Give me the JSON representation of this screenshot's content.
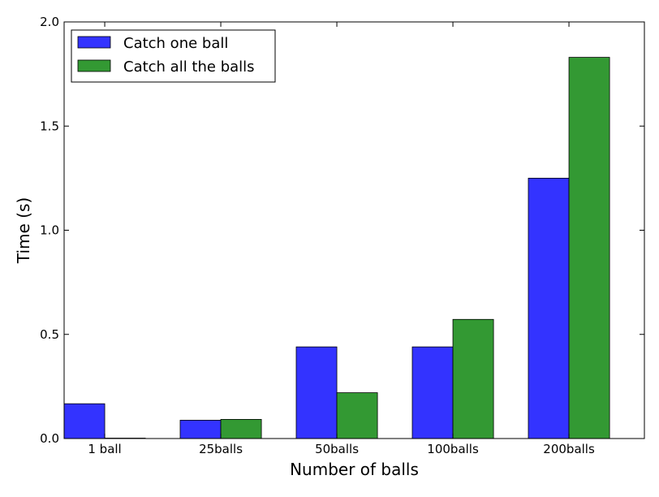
{
  "chart_data": {
    "type": "bar",
    "title": "",
    "xlabel": "Number of balls",
    "ylabel": "Time (s)",
    "ylim": [
      0,
      2.0
    ],
    "yticks": [
      "0.0",
      "0.5",
      "1.0",
      "1.5",
      "2.0"
    ],
    "categories": [
      "1 ball",
      "25balls",
      "50balls",
      "100balls",
      "200balls"
    ],
    "series": [
      {
        "name": "Catch one ball",
        "color": "#3333ff",
        "values": [
          0.167,
          0.088,
          0.44,
          0.44,
          1.25
        ]
      },
      {
        "name": "Catch all the balls",
        "color": "#339933",
        "values": [
          0.002,
          0.092,
          0.22,
          0.572,
          1.83
        ]
      }
    ],
    "grid": false,
    "legend": "top-left"
  }
}
